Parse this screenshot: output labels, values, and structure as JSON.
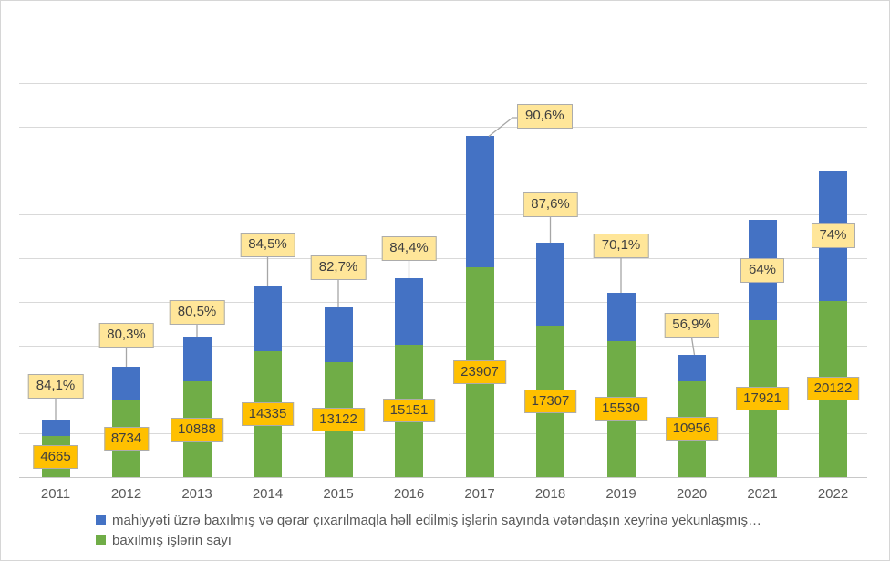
{
  "chart_data": {
    "type": "bar",
    "stacked": true,
    "title": "",
    "xlabel": "",
    "ylabel": "",
    "categories": [
      "2011",
      "2012",
      "2013",
      "2014",
      "2015",
      "2016",
      "2017",
      "2018",
      "2019",
      "2020",
      "2021",
      "2022"
    ],
    "series": [
      {
        "name": "baxılmış işlərin sayı",
        "color": "#70AD47",
        "values": [
          4665,
          8734,
          10888,
          14335,
          13122,
          15151,
          23907,
          17307,
          15530,
          10956,
          17921,
          20122
        ]
      },
      {
        "name": "mahiyyəti üzrə baxılmış və qərar çıxarılmaqla həll edilmiş işlərin sayında vətəndaşın xeyrinə yekunlaşmış…",
        "color": "#4472C4",
        "estimated": true,
        "values": [
          1900,
          3870,
          5150,
          7440,
          6250,
          7560,
          15000,
          9460,
          5510,
          3000,
          11450,
          14830
        ]
      }
    ],
    "value_labels": [
      "4665",
      "8734",
      "10888",
      "14335",
      "13122",
      "15151",
      "23907",
      "17307",
      "15530",
      "10956",
      "17921",
      "20122"
    ],
    "percent_labels": [
      "84,1%",
      "80,3%",
      "80,5%",
      "84,5%",
      "82,7%",
      "84,4%",
      "90,6%",
      "87,6%",
      "70,1%",
      "56,9%",
      "64%",
      "74%"
    ],
    "ylim": [
      0,
      45000
    ],
    "grid_step": 5000,
    "grid": true,
    "y_tick_labels_visible": false,
    "legend_position": "bottom-left",
    "legend": [
      {
        "label": "mahiyyəti üzrə baxılmış və qərar çıxarılmaqla həll edilmiş işlərin sayında vətəndaşın xeyrinə yekunlaşmış…",
        "color": "#4472C4"
      },
      {
        "label": "baxılmış işlərin sayı",
        "color": "#70AD47"
      }
    ],
    "colors": {
      "value_label_fill": "#FFC000",
      "percent_label_fill": "#FFE699",
      "label_border": "#ACACAC",
      "label_text": "#3F3F3F",
      "gridline": "#D9D9D9",
      "axis_line": "#C8C8C8",
      "axis_text": "#595959",
      "leader_line": "#A6A6A6",
      "background": "#FFFFFF"
    }
  }
}
